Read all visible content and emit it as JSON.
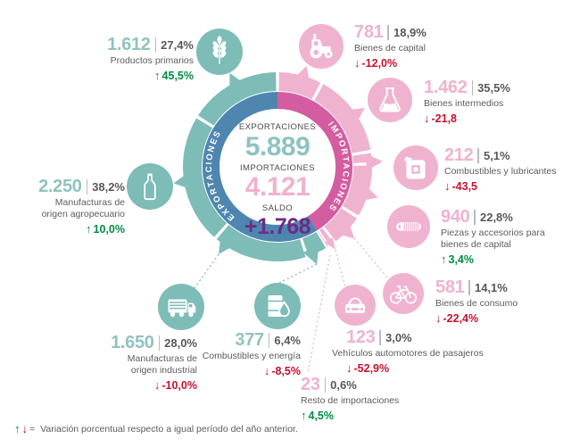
{
  "colors": {
    "teal": "#7dbcb7",
    "teal_text": "#8fc3bf",
    "pink": "#efb3d0",
    "pink_text": "#f0b2cf",
    "blue": "#4e86b0",
    "magenta": "#d45da1",
    "green": "#008c46",
    "red": "#c8102e",
    "purple": "#6d2c85",
    "dark": "#57585a",
    "gray_label": "#5c5d5f"
  },
  "chart_data": {
    "type": "donut",
    "center": {
      "exports_label": "EXPORTACIONES",
      "exports_value": "5.889",
      "imports_label": "IMPORTACIONES",
      "imports_value": "4.121",
      "balance_label": "SALDO",
      "balance_value": "+1.768"
    },
    "ring_labels": {
      "exports": "EXPORTACIONES",
      "imports": "IMPORTACIONES"
    },
    "totals": {
      "exports": 5889,
      "imports": 4121,
      "balance": 1768
    },
    "import_segments": [
      {
        "id": "bienes_capital",
        "pct": 18.9
      },
      {
        "id": "bienes_intermedios",
        "pct": 35.5
      },
      {
        "id": "combustibles_lubricantes",
        "pct": 5.1
      },
      {
        "id": "piezas_accesorios",
        "pct": 22.8
      },
      {
        "id": "bienes_consumo",
        "pct": 14.1
      },
      {
        "id": "vehiculos_automotores",
        "pct": 3.0
      },
      {
        "id": "resto_importaciones",
        "pct": 0.6
      }
    ],
    "export_segments": [
      {
        "id": "combustibles_energia",
        "pct": 6.4
      },
      {
        "id": "manufacturas_industrial",
        "pct": 28.0
      },
      {
        "id": "manufacturas_agropecuario",
        "pct": 38.2
      },
      {
        "id": "productos_primarios",
        "pct": 27.4
      }
    ]
  },
  "items": {
    "productos_primarios": {
      "value": "1.612",
      "share": "27,4%",
      "label": "Productos primarios",
      "change": "45,5%",
      "direction": "up"
    },
    "bienes_capital": {
      "value": "781",
      "share": "18,9%",
      "label": "Bienes de capital",
      "change": "-12,0%",
      "direction": "down"
    },
    "bienes_intermedios": {
      "value": "1.462",
      "share": "35,5%",
      "label": "Bienes intermedios",
      "change": "-21,8",
      "direction": "down"
    },
    "combustibles_lubricantes": {
      "value": "212",
      "share": "5,1%",
      "label": "Combustibles y lubricantes",
      "change": "-43,5",
      "direction": "down"
    },
    "piezas_accesorios": {
      "value": "940",
      "share": "22,8%",
      "label": "Piezas y accesorios para",
      "label2": "bienes de capital",
      "change": "3,4%",
      "direction": "up"
    },
    "bienes_consumo": {
      "value": "581",
      "share": "14,1%",
      "label": "Bienes de consumo",
      "change": "-22,4%",
      "direction": "down"
    },
    "vehiculos_automotores": {
      "value": "123",
      "share": "3,0%",
      "label": "Vehículos automotores de pasajeros",
      "change": "-52,9%",
      "direction": "down"
    },
    "resto_importaciones": {
      "value": "23",
      "share": "0,6%",
      "label": "Resto de importaciones",
      "change": "4,5%",
      "direction": "up"
    },
    "combustibles_energia": {
      "value": "377",
      "share": "6,4%",
      "label": "Combustibles y energía",
      "change": "-8,5%",
      "direction": "down"
    },
    "manufacturas_industrial": {
      "value": "1.650",
      "share": "28,0%",
      "label": "Manufacturas de",
      "label2": "origen industrial",
      "change": "-10,0%",
      "direction": "down"
    },
    "manufacturas_agropecuario": {
      "value": "2.250",
      "share": "38,2%",
      "label": "Manufacturas de",
      "label2": "origen agropecuario",
      "change": "10,0%",
      "direction": "up"
    }
  },
  "footer": {
    "up_symbol": "↑",
    "down_symbol": "↓",
    "equals": "=",
    "text": "Variación porcentual respecto a igual período del año anterior."
  }
}
